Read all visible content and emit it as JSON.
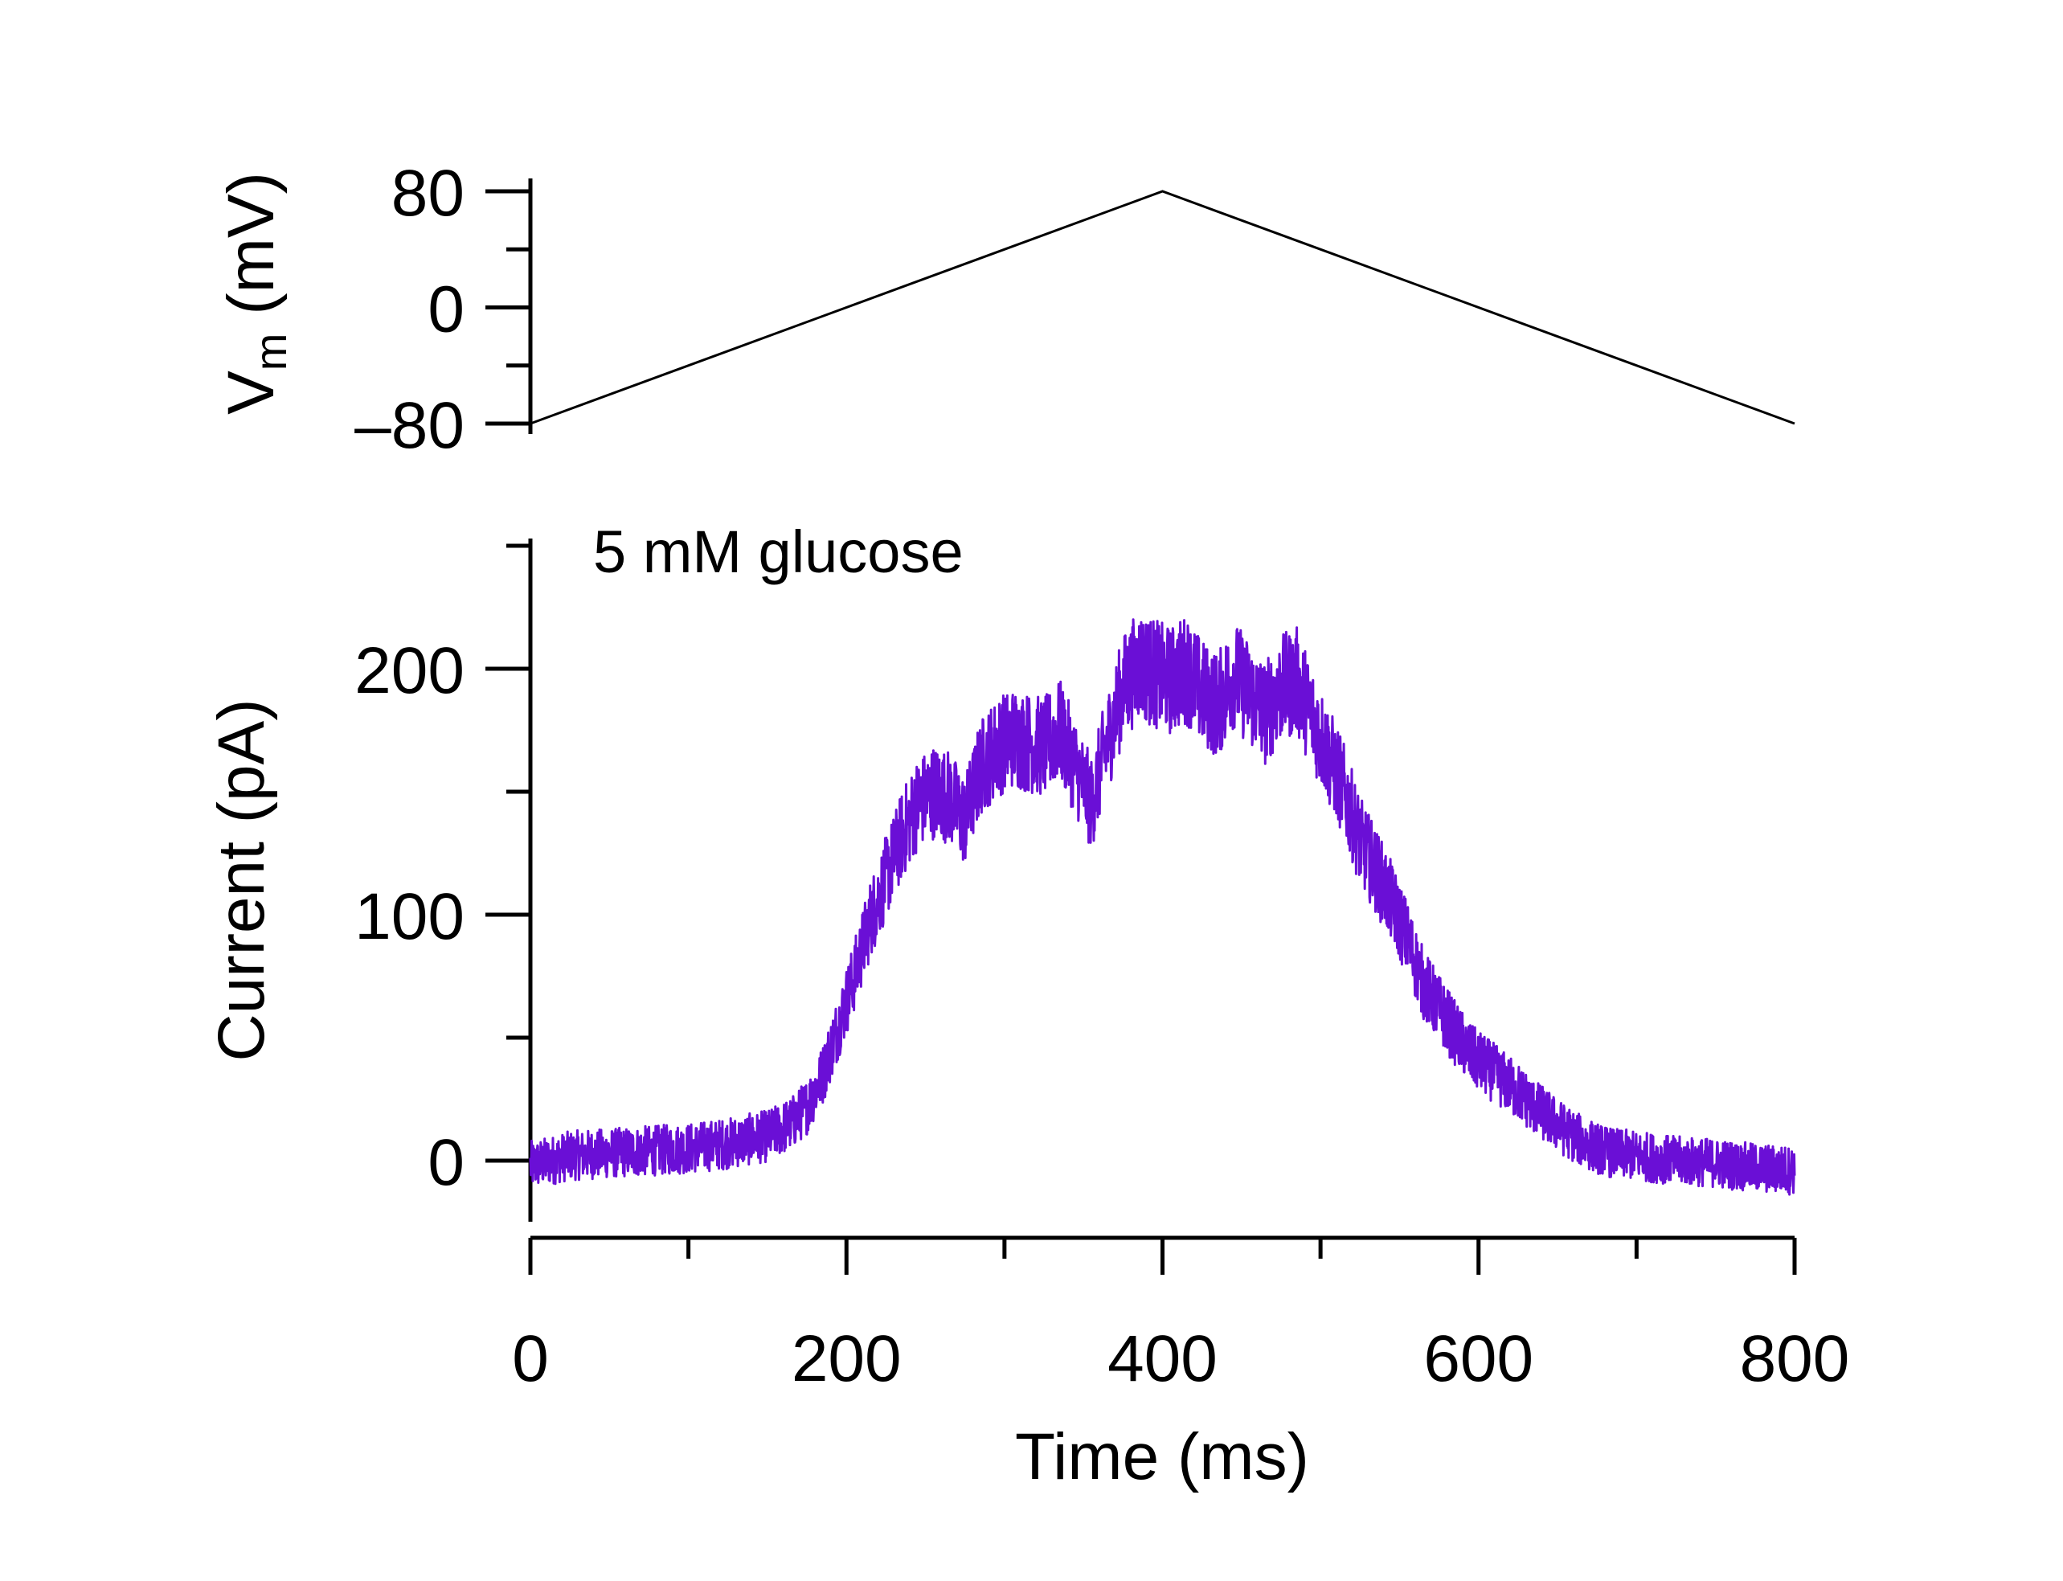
{
  "chart_data": [
    {
      "type": "line",
      "ylabel": "V",
      "ylabel_subscript": "m",
      "ylabel_unit": "(mV)",
      "ylim": [
        -80,
        80
      ],
      "yticks": [
        -80,
        0,
        80
      ],
      "ytick_labels": [
        "–80",
        "0",
        "80"
      ],
      "yminor_step": 40,
      "xlim": [
        0,
        800
      ],
      "series": [
        {
          "color": "#000000",
          "x": [
            0,
            400,
            800
          ],
          "y": [
            -80,
            80,
            -80
          ]
        }
      ]
    },
    {
      "type": "line",
      "ylabel": "Current (pA)",
      "xlabel": "Time (ms)",
      "annotation": "5 mM glucose",
      "xlim": [
        0,
        800
      ],
      "ylim": [
        -25,
        250
      ],
      "xticks": [
        0,
        200,
        400,
        600,
        800
      ],
      "xtick_labels": [
        "0",
        "200",
        "400",
        "600",
        "800"
      ],
      "xminor_step": 100,
      "yticks": [
        0,
        100,
        200
      ],
      "ytick_labels": [
        "0",
        "100",
        "200"
      ],
      "yminor_step": 50,
      "series": [
        {
          "color": "#6a0fd6",
          "x": [
            0,
            25,
            50,
            75,
            100,
            125,
            150,
            165,
            175,
            185,
            195,
            205,
            215,
            225,
            235,
            245,
            255,
            265,
            275,
            285,
            295,
            305,
            315,
            325,
            335,
            345,
            355,
            365,
            375,
            385,
            395,
            405,
            415,
            425,
            435,
            445,
            455,
            465,
            475,
            485,
            495,
            505,
            515,
            525,
            535,
            545,
            555,
            565,
            575,
            585,
            595,
            605,
            615,
            625,
            635,
            645,
            655,
            665,
            675,
            685,
            700,
            725,
            750,
            775,
            800
          ],
          "y": [
            -2,
            2,
            3,
            4,
            5,
            7,
            10,
            15,
            22,
            35,
            55,
            75,
            98,
            115,
            132,
            145,
            150,
            148,
            138,
            160,
            168,
            172,
            170,
            168,
            175,
            160,
            145,
            170,
            192,
            202,
            198,
            195,
            200,
            190,
            185,
            198,
            190,
            182,
            192,
            195,
            180,
            165,
            150,
            130,
            118,
            105,
            90,
            72,
            62,
            52,
            43,
            38,
            33,
            28,
            22,
            17,
            12,
            8,
            5,
            3,
            2,
            0,
            -1,
            -3,
            -4
          ],
          "noise_amplitude": 10
        }
      ]
    }
  ]
}
